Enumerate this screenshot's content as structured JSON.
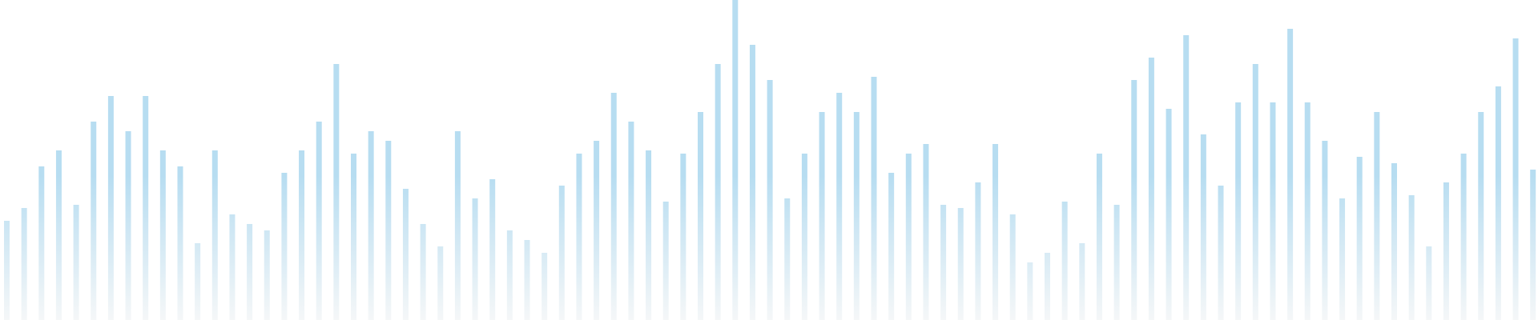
{
  "colors": {
    "background": "#ffffff",
    "bar_top": "#b7ddf1",
    "bar_bottom": "#f5f7f8"
  },
  "bars": [
    0.31,
    0.35,
    0.48,
    0.53,
    0.36,
    0.62,
    0.7,
    0.59,
    0.7,
    0.53,
    0.48,
    0.24,
    0.53,
    0.33,
    0.3,
    0.28,
    0.46,
    0.53,
    0.62,
    0.8,
    0.52,
    0.59,
    0.56,
    0.41,
    0.3,
    0.23,
    0.59,
    0.38,
    0.44,
    0.28,
    0.25,
    0.21,
    0.42,
    0.52,
    0.56,
    0.71,
    0.62,
    0.53,
    0.37,
    0.52,
    0.65,
    0.8,
    1.0,
    0.86,
    0.75,
    0.38,
    0.52,
    0.65,
    0.71,
    0.65,
    0.76,
    0.46,
    0.52,
    0.55,
    0.36,
    0.35,
    0.43,
    0.55,
    0.33,
    0.18,
    0.21,
    0.37,
    0.24,
    0.52,
    0.36,
    0.75,
    0.82,
    0.66,
    0.89,
    0.58,
    0.42,
    0.68,
    0.8,
    0.68,
    0.91,
    0.68,
    0.56,
    0.38,
    0.51,
    0.65,
    0.49,
    0.39,
    0.23,
    0.43,
    0.52,
    0.65,
    0.73,
    0.88,
    0.47
  ]
}
